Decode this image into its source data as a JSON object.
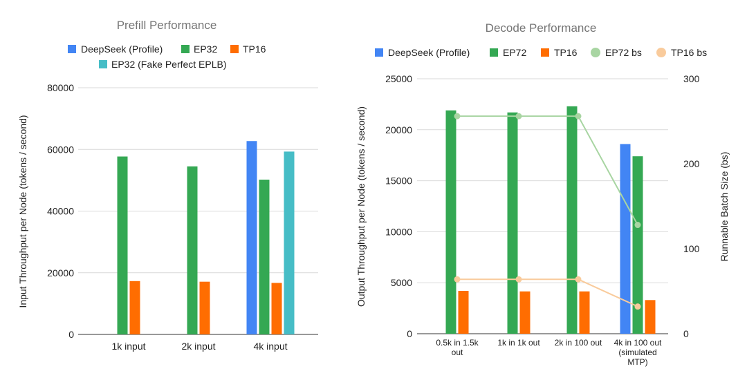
{
  "chart_data": [
    {
      "type": "bar",
      "title": "Prefill Performance",
      "ylabel": "Input Throughput per Node (tokens / second)",
      "xlabel": "",
      "ylim": [
        0,
        80000
      ],
      "yticks": [
        0,
        20000,
        40000,
        60000,
        80000
      ],
      "grid": true,
      "legend_position": "top",
      "categories": [
        "1k input",
        "2k input",
        "4k input"
      ],
      "series": [
        {
          "name": "DeepSeek (Profile)",
          "color": "#4285f4",
          "values": [
            null,
            null,
            62700
          ]
        },
        {
          "name": "EP32",
          "color": "#34a853",
          "values": [
            57700,
            54500,
            50200
          ]
        },
        {
          "name": "TP16",
          "color": "#ff6d01",
          "values": [
            17300,
            17100,
            16700
          ]
        },
        {
          "name": "EP32 (Fake Perfect EPLB)",
          "color": "#46bdc6",
          "values": [
            null,
            null,
            59300
          ]
        }
      ]
    },
    {
      "type": "bar",
      "title": "Decode Performance",
      "ylabel": "Output Throughput per Node (tokens / second)",
      "y2label": "Runnable Batch Size (bs)",
      "xlabel": "",
      "ylim": [
        0,
        25000
      ],
      "yticks": [
        0,
        5000,
        10000,
        15000,
        20000,
        25000
      ],
      "y2lim": [
        0,
        300
      ],
      "y2ticks": [
        0,
        100,
        200,
        300
      ],
      "grid": true,
      "legend_position": "top",
      "categories": [
        [
          "0.5k in 1.5k",
          "out"
        ],
        [
          "1k in 1k out"
        ],
        [
          "2k in 100 out"
        ],
        [
          "4k in 100 out",
          "(simulated",
          "MTP)"
        ]
      ],
      "series": [
        {
          "name": "DeepSeek (Profile)",
          "type": "bar",
          "color": "#4285f4",
          "values": [
            null,
            null,
            null,
            18600
          ]
        },
        {
          "name": "EP72",
          "type": "bar",
          "color": "#34a853",
          "values": [
            21900,
            21700,
            22300,
            17400
          ]
        },
        {
          "name": "TP16",
          "type": "bar",
          "color": "#ff6d01",
          "values": [
            4200,
            4150,
            4150,
            3300
          ]
        },
        {
          "name": "EP72 bs",
          "type": "line",
          "axis": "right",
          "color": "#a8d5a2",
          "values": [
            256,
            256,
            256,
            128
          ]
        },
        {
          "name": "TP16 bs",
          "type": "line",
          "axis": "right",
          "color": "#f9cb9c",
          "values": [
            64,
            64,
            64,
            32
          ]
        }
      ]
    }
  ]
}
